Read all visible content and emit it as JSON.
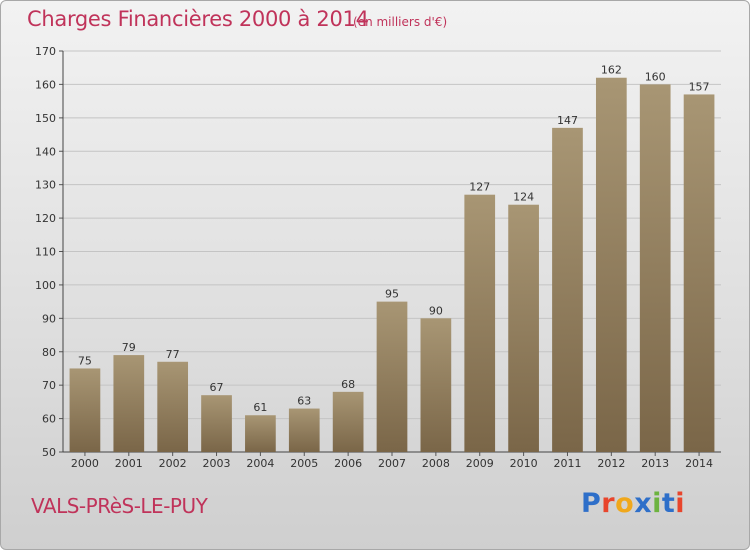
{
  "header": {
    "title": "Charges Financières 2000 à 2014",
    "subtitle": "(en milliers d'€)"
  },
  "footer": {
    "commune": "VALS-PRèS-LE-PUY",
    "logo_text": "Proxiti",
    "logo_colors": [
      "#2e6fc9",
      "#e8452c",
      "#f0a81c",
      "#2e6fc9",
      "#6db33f",
      "#2e6fc9",
      "#e8452c"
    ]
  },
  "chart_data": {
    "type": "bar",
    "title": "Charges Financières 2000 à 2014",
    "subtitle": "(en milliers d'€)",
    "categories": [
      "2000",
      "2001",
      "2002",
      "2003",
      "2004",
      "2005",
      "2006",
      "2007",
      "2008",
      "2009",
      "2010",
      "2011",
      "2012",
      "2013",
      "2014"
    ],
    "values": [
      75,
      79,
      77,
      67,
      61,
      63,
      68,
      95,
      90,
      127,
      124,
      147,
      162,
      160,
      157
    ],
    "ylim": [
      50,
      170
    ],
    "yticks": [
      50,
      60,
      70,
      80,
      90,
      100,
      110,
      120,
      130,
      140,
      150,
      160,
      170
    ],
    "grid": true,
    "bar_color_top": "#a89674",
    "bar_color_bottom": "#7a6648",
    "xlabel": "",
    "ylabel": ""
  }
}
